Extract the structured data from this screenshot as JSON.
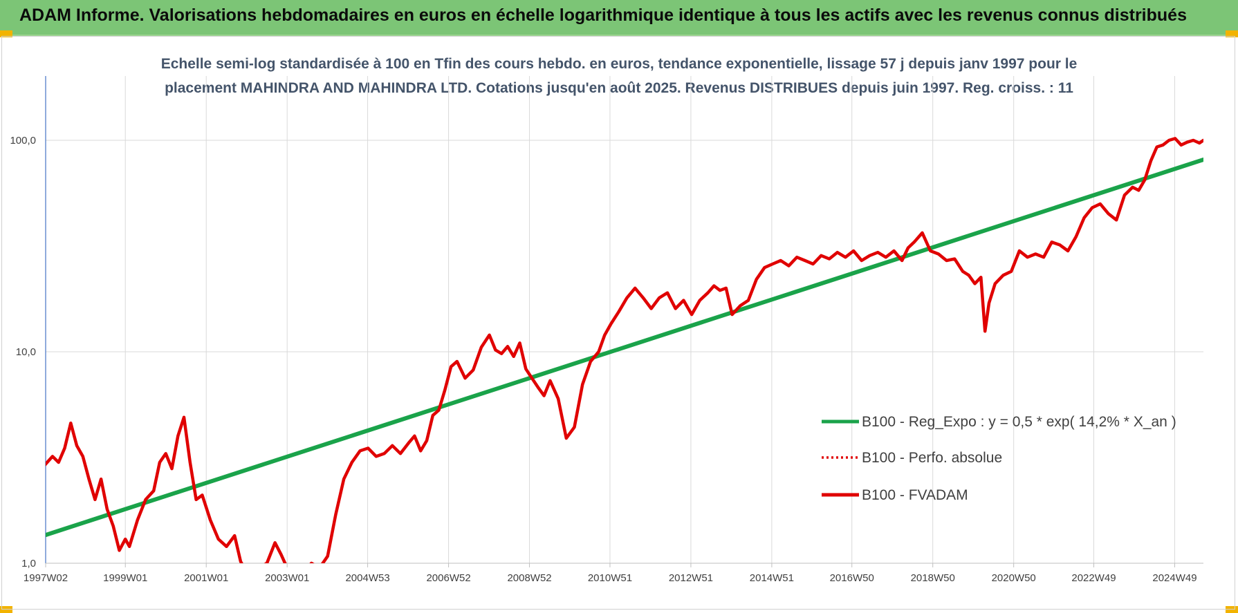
{
  "banner": {
    "title": "ADAM Informe. Valorisations hebdomadaires en euros en échelle logarithmique identique à tous les actifs avec les revenus connus distribués",
    "background": "#7cc576"
  },
  "chart_data": {
    "type": "line",
    "subtitle_lines": [
      "Echelle semi-log standardisée à 100 en Tfin des cours hebdo. en euros, tendance exponentielle, lissage 57 j depuis janv 1997 pour le",
      "placement MAHINDRA AND MAHINDRA LTD. Cotations jusqu'en août 2025. Revenus DISTRIBUES depuis juin 1997. Reg. croiss. : 11"
    ],
    "y_scale": "log",
    "ylim": [
      1,
      180
    ],
    "y_ticks": [
      {
        "value": 1,
        "label": "1,0"
      },
      {
        "value": 10,
        "label": "10,0"
      },
      {
        "value": 100,
        "label": "100,0"
      }
    ],
    "x_range": [
      1997.03,
      2025.65
    ],
    "x_ticks": [
      {
        "value": 1997.03,
        "label": "1997W02"
      },
      {
        "value": 1999.0,
        "label": "1999W01"
      },
      {
        "value": 2001.0,
        "label": "2001W01"
      },
      {
        "value": 2003.0,
        "label": "2003W01"
      },
      {
        "value": 2004.99,
        "label": "2004W53"
      },
      {
        "value": 2006.99,
        "label": "2006W52"
      },
      {
        "value": 2008.99,
        "label": "2008W52"
      },
      {
        "value": 2010.98,
        "label": "2010W51"
      },
      {
        "value": 2012.98,
        "label": "2012W51"
      },
      {
        "value": 2014.98,
        "label": "2014W51"
      },
      {
        "value": 2016.96,
        "label": "2016W50"
      },
      {
        "value": 2018.96,
        "label": "2018W50"
      },
      {
        "value": 2020.96,
        "label": "2020W50"
      },
      {
        "value": 2022.94,
        "label": "2022W49"
      },
      {
        "value": 2024.94,
        "label": "2024W49"
      }
    ],
    "grid": true,
    "legend_position": "center-right",
    "series": [
      {
        "name": "B100 - Reg_Expo : y = 0,5 * exp( 14,2% *  X_an )",
        "color": "#1aa34a",
        "style": "solid",
        "x": [
          1997.03,
          2025.65
        ],
        "y": [
          1.36,
          81.0
        ]
      },
      {
        "name": "B100 - Perfo. absolue",
        "color": "#e00000",
        "style": "dotted",
        "x": [],
        "y": []
      },
      {
        "name": "B100 - FVADAM",
        "color": "#e00000",
        "style": "solid",
        "x": [
          1997.0,
          1997.2,
          1997.35,
          1997.5,
          1997.65,
          1997.8,
          1997.95,
          1998.1,
          1998.25,
          1998.4,
          1998.55,
          1998.7,
          1998.85,
          1999.0,
          1999.1,
          1999.3,
          1999.5,
          1999.7,
          1999.85,
          2000.0,
          2000.15,
          2000.3,
          2000.45,
          2000.6,
          2000.75,
          2000.9,
          2001.1,
          2001.3,
          2001.5,
          2001.7,
          2001.85,
          2002.0,
          2002.15,
          2002.3,
          2002.5,
          2002.7,
          2002.85,
          2003.0,
          2003.2,
          2003.4,
          2003.6,
          2003.8,
          2004.0,
          2004.2,
          2004.4,
          2004.6,
          2004.8,
          2005.0,
          2005.2,
          2005.4,
          2005.6,
          2005.8,
          2006.0,
          2006.15,
          2006.3,
          2006.45,
          2006.6,
          2006.75,
          2006.9,
          2007.05,
          2007.2,
          2007.4,
          2007.6,
          2007.8,
          2008.0,
          2008.15,
          2008.3,
          2008.45,
          2008.6,
          2008.75,
          2008.9,
          2009.05,
          2009.2,
          2009.35,
          2009.5,
          2009.7,
          2009.9,
          2010.1,
          2010.3,
          2010.5,
          2010.7,
          2010.85,
          2011.0,
          2011.2,
          2011.4,
          2011.6,
          2011.8,
          2012.0,
          2012.2,
          2012.4,
          2012.6,
          2012.8,
          2013.0,
          2013.2,
          2013.4,
          2013.55,
          2013.7,
          2013.85,
          2014.0,
          2014.2,
          2014.4,
          2014.6,
          2014.8,
          2015.0,
          2015.2,
          2015.4,
          2015.6,
          2015.8,
          2016.0,
          2016.2,
          2016.4,
          2016.6,
          2016.8,
          2017.0,
          2017.2,
          2017.4,
          2017.6,
          2017.8,
          2018.0,
          2018.2,
          2018.35,
          2018.5,
          2018.7,
          2018.9,
          2019.1,
          2019.3,
          2019.5,
          2019.7,
          2019.85,
          2020.0,
          2020.15,
          2020.25,
          2020.35,
          2020.5,
          2020.7,
          2020.9,
          2021.1,
          2021.3,
          2021.5,
          2021.7,
          2021.9,
          2022.1,
          2022.3,
          2022.5,
          2022.7,
          2022.9,
          2023.1,
          2023.3,
          2023.5,
          2023.7,
          2023.9,
          2024.05,
          2024.2,
          2024.35,
          2024.5,
          2024.65,
          2024.8,
          2024.95,
          2025.1,
          2025.25,
          2025.4,
          2025.55,
          2025.65
        ],
        "y": [
          2.9,
          3.2,
          3.0,
          3.5,
          4.6,
          3.6,
          3.2,
          2.5,
          2.0,
          2.5,
          1.8,
          1.5,
          1.15,
          1.3,
          1.2,
          1.6,
          2.0,
          2.2,
          3.0,
          3.3,
          2.8,
          4.0,
          4.9,
          3.0,
          2.0,
          2.1,
          1.6,
          1.3,
          1.2,
          1.35,
          1.02,
          0.9,
          0.85,
          0.95,
          1.0,
          1.25,
          1.1,
          0.95,
          0.88,
          0.9,
          1.0,
          0.95,
          1.08,
          1.7,
          2.5,
          3.0,
          3.4,
          3.5,
          3.2,
          3.3,
          3.6,
          3.3,
          3.7,
          4.0,
          3.4,
          3.8,
          5.0,
          5.3,
          6.6,
          8.5,
          9.0,
          7.5,
          8.2,
          10.5,
          12.0,
          10.2,
          9.8,
          10.6,
          9.5,
          11.0,
          8.3,
          7.5,
          6.8,
          6.2,
          7.3,
          6.0,
          3.9,
          4.4,
          7.0,
          9.0,
          10.0,
          12.0,
          13.5,
          15.5,
          18.0,
          20.0,
          18.0,
          16.0,
          18.0,
          19.0,
          16.0,
          17.5,
          15.0,
          17.5,
          19.0,
          20.5,
          19.5,
          20.0,
          15.0,
          16.5,
          17.5,
          22.0,
          25.0,
          26.0,
          27.0,
          25.5,
          28.0,
          27.0,
          26.0,
          28.5,
          27.5,
          29.5,
          28.0,
          30.0,
          27.0,
          28.5,
          29.5,
          28.0,
          30.0,
          27.0,
          31.0,
          33.0,
          36.5,
          30.0,
          29.0,
          27.0,
          27.5,
          24.0,
          23.0,
          21.0,
          22.5,
          12.5,
          17.0,
          21.0,
          23.0,
          24.0,
          30.0,
          28.0,
          29.0,
          28.0,
          33.0,
          32.0,
          30.0,
          35.0,
          43.0,
          48.0,
          50.0,
          45.0,
          42.0,
          55.0,
          60.0,
          58.0,
          65.0,
          80.0,
          93.0,
          95.0,
          100.0,
          102.0,
          95.0,
          98.0,
          100.0,
          97.0,
          100.0
        ]
      }
    ]
  }
}
